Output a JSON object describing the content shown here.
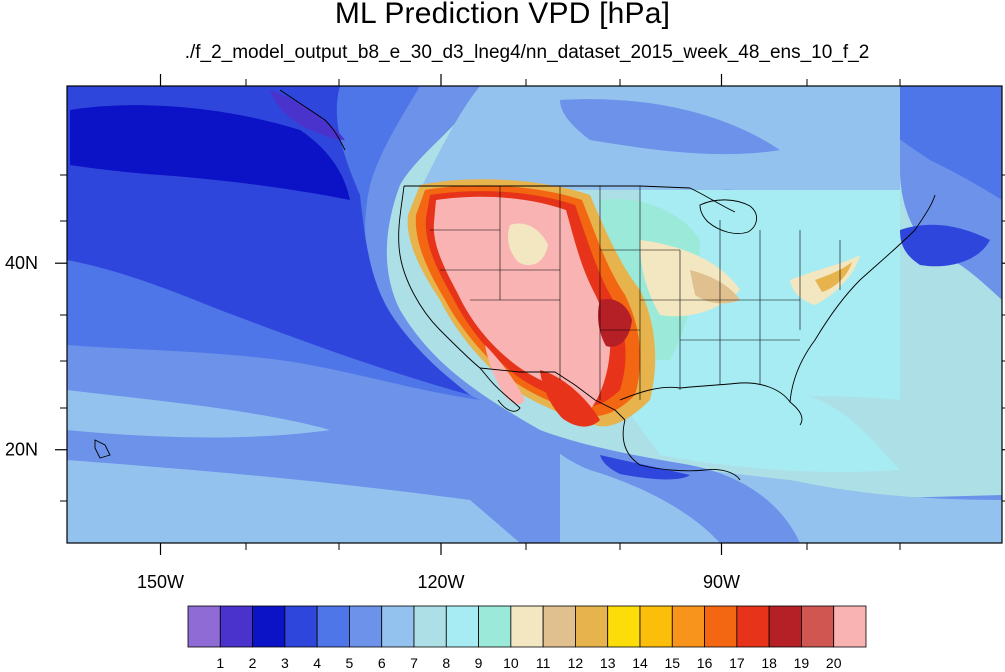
{
  "figure": {
    "title": "ML Prediction VPD [hPa]",
    "subtitle": "./f_2_model_output_b8_e_30_d3_lneg4/nn_dataset_2015_week_48_ens_10_f_2"
  },
  "axes": {
    "lat_ticks": [
      {
        "value": 20,
        "label": "20N"
      },
      {
        "value": 40,
        "label": "40N"
      }
    ],
    "lon_ticks": [
      {
        "value": -150,
        "label": "150W"
      },
      {
        "value": -120,
        "label": "120W"
      },
      {
        "value": -90,
        "label": "90W"
      }
    ],
    "lon_range": [
      -160,
      -60
    ],
    "lat_range": [
      10,
      59
    ]
  },
  "colorbar": {
    "levels": [
      "1",
      "2",
      "3",
      "4",
      "5",
      "6",
      "7",
      "8",
      "9",
      "10",
      "11",
      "12",
      "13",
      "14",
      "15",
      "16",
      "17",
      "18",
      "19",
      "20"
    ],
    "colors": [
      "#8f6bd6",
      "#4a33cc",
      "#0c12c6",
      "#2e46dc",
      "#4e76e8",
      "#6c92ea",
      "#94c2ee",
      "#addfe6",
      "#a6ecf2",
      "#9be9d8",
      "#f3e7c2",
      "#dfc08e",
      "#e6b34c",
      "#fcdd0a",
      "#fbbf0b",
      "#f8941b",
      "#f36612",
      "#e63319",
      "#b52027",
      "#d05652",
      "#f9b3b3"
    ]
  },
  "map": {
    "ocean_base_color": "#addfe6",
    "land_outline_color": "#000000"
  }
}
